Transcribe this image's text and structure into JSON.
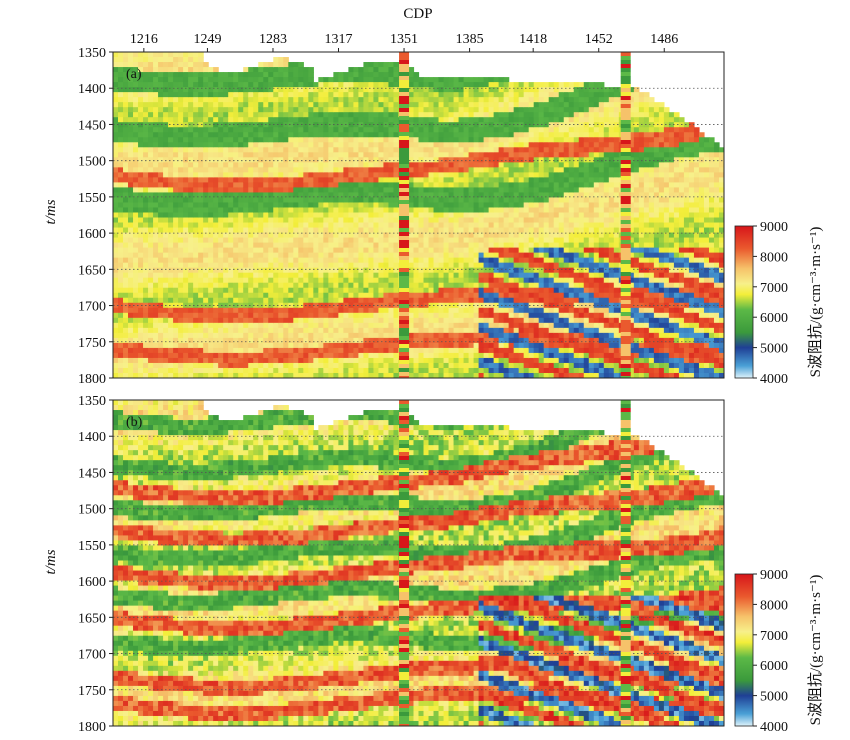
{
  "chart_data": [
    {
      "type": "heatmap",
      "panel_label": "(a)",
      "x_axis_title": "CDP",
      "x_ticks": [
        "1216",
        "1249",
        "1283",
        "1317",
        "1351",
        "1385",
        "1418",
        "1452",
        "1486"
      ],
      "x_range": [
        1200,
        1517
      ],
      "y_axis_title": "t/ms",
      "y_ticks": [
        "1350",
        "1400",
        "1450",
        "1500",
        "1550",
        "1600",
        "1650",
        "1700",
        "1750",
        "1800"
      ],
      "y_range": [
        1350,
        1800
      ],
      "colorbar": {
        "label": "S波阻抗/(g·cm⁻³·m·s⁻¹)",
        "ticks": [
          "9000",
          "8000",
          "7000",
          "6000",
          "5000",
          "4000"
        ],
        "range": [
          4000,
          9000
        ]
      },
      "well_logs_at_cdp": [
        1351,
        1466
      ],
      "gridlines": "horizontal dotted"
    },
    {
      "type": "heatmap",
      "panel_label": "(b)",
      "x_ticks": [],
      "x_range": [
        1200,
        1517
      ],
      "y_axis_title": "t/ms",
      "y_ticks": [
        "1350",
        "1400",
        "1450",
        "1500",
        "1550",
        "1600",
        "1650",
        "1700",
        "1750",
        "1800"
      ],
      "y_range": [
        1350,
        1800
      ],
      "colorbar": {
        "label": "S波阻抗/(g·cm⁻³·m·s⁻¹)",
        "ticks": [
          "9000",
          "8000",
          "7000",
          "6000",
          "5000",
          "4000"
        ],
        "range": [
          4000,
          9000
        ]
      },
      "well_logs_at_cdp": [
        1351,
        1466
      ],
      "gridlines": "horizontal dotted"
    }
  ]
}
